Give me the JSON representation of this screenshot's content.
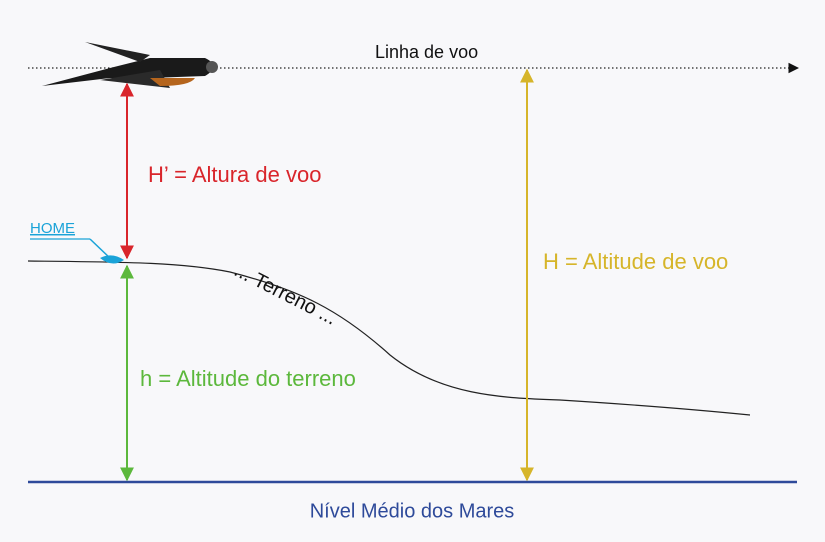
{
  "flight_line": {
    "label": "Linha de voo"
  },
  "flight_height": {
    "label": "H’ = Altura de voo"
  },
  "home": {
    "label": "HOME"
  },
  "terrain": {
    "label": "... Terreno ..."
  },
  "terrain_altitude": {
    "label": "h = Altitude do terreno"
  },
  "flight_altitude": {
    "label": "H = Altitude de voo"
  },
  "sea_level": {
    "label": "Nível Médio dos Mares"
  }
}
